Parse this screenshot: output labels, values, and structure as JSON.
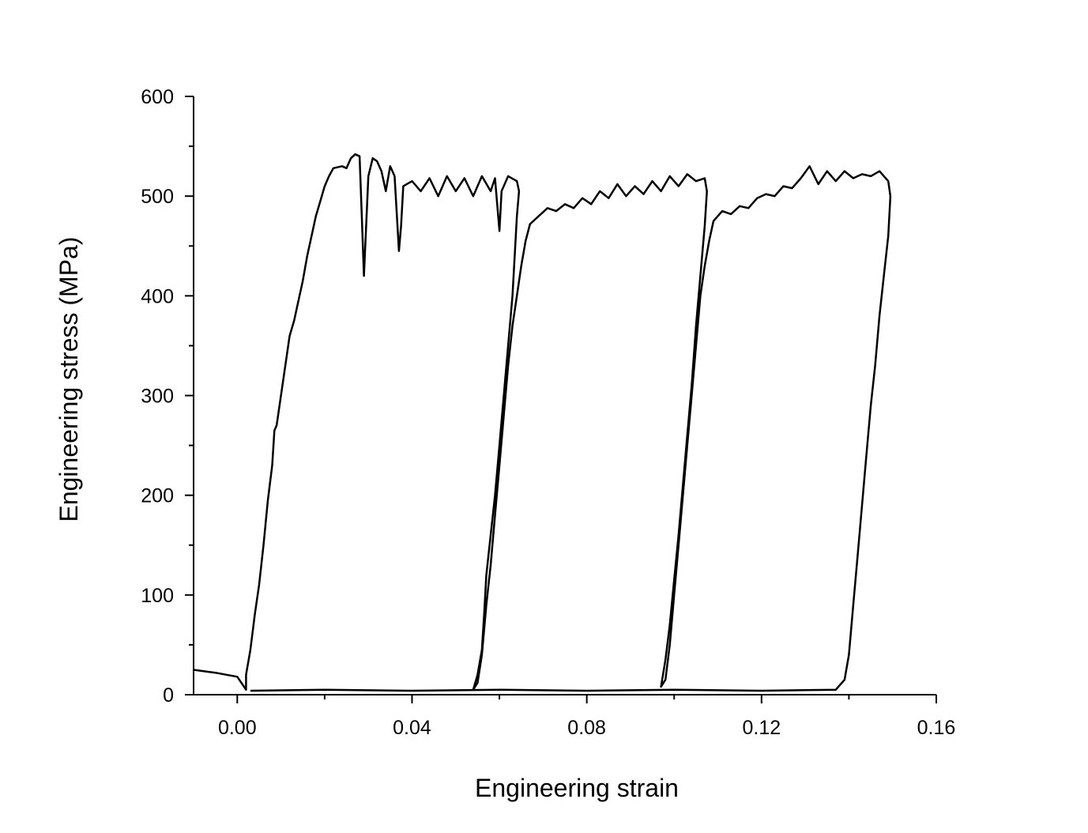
{
  "chart_data": {
    "type": "line",
    "title": "",
    "xlabel": "Engineering strain",
    "ylabel": "Engineering stress (MPa)",
    "xlim": [
      -0.01,
      0.16
    ],
    "ylim": [
      0,
      600
    ],
    "xticks": [
      0.0,
      0.04,
      0.08,
      0.12,
      0.16
    ],
    "xtick_labels": [
      "0.00",
      "0.04",
      "0.08",
      "0.12",
      "0.16"
    ],
    "yticks": [
      0,
      100,
      200,
      300,
      400,
      500,
      600
    ],
    "ytick_labels": [
      "0",
      "100",
      "200",
      "300",
      "400",
      "500",
      "600"
    ],
    "grid": false,
    "line_color": "#000000",
    "series": [
      {
        "points": [
          [
            -0.01,
            25
          ],
          [
            -0.005,
            22
          ],
          [
            0.0,
            18
          ],
          [
            0.002,
            5
          ],
          [
            0.002,
            20
          ],
          [
            0.003,
            45
          ],
          [
            0.004,
            80
          ],
          [
            0.005,
            110
          ],
          [
            0.006,
            150
          ],
          [
            0.007,
            195
          ],
          [
            0.008,
            230
          ],
          [
            0.0085,
            265
          ],
          [
            0.009,
            270
          ],
          [
            0.01,
            300
          ],
          [
            0.011,
            330
          ],
          [
            0.012,
            360
          ],
          [
            0.013,
            375
          ],
          [
            0.014,
            395
          ],
          [
            0.015,
            415
          ],
          [
            0.016,
            440
          ],
          [
            0.017,
            460
          ],
          [
            0.018,
            480
          ],
          [
            0.019,
            495
          ],
          [
            0.02,
            510
          ],
          [
            0.021,
            520
          ],
          [
            0.022,
            528
          ],
          [
            0.024,
            530
          ],
          [
            0.025,
            528
          ],
          [
            0.026,
            538
          ],
          [
            0.027,
            542
          ],
          [
            0.028,
            540
          ],
          [
            0.0285,
            480
          ],
          [
            0.029,
            420
          ],
          [
            0.0295,
            470
          ],
          [
            0.03,
            520
          ],
          [
            0.031,
            538
          ],
          [
            0.032,
            535
          ],
          [
            0.033,
            525
          ],
          [
            0.034,
            505
          ],
          [
            0.035,
            530
          ],
          [
            0.036,
            520
          ],
          [
            0.037,
            445
          ],
          [
            0.0375,
            470
          ],
          [
            0.038,
            510
          ],
          [
            0.04,
            515
          ],
          [
            0.042,
            505
          ],
          [
            0.044,
            518
          ],
          [
            0.046,
            500
          ],
          [
            0.048,
            520
          ],
          [
            0.05,
            505
          ],
          [
            0.052,
            518
          ],
          [
            0.054,
            500
          ],
          [
            0.056,
            520
          ],
          [
            0.058,
            505
          ],
          [
            0.059,
            518
          ],
          [
            0.06,
            465
          ],
          [
            0.0605,
            505
          ],
          [
            0.062,
            520
          ],
          [
            0.064,
            515
          ],
          [
            0.0645,
            505
          ],
          [
            0.064,
            480
          ],
          [
            0.0635,
            440
          ],
          [
            0.063,
            400
          ],
          [
            0.062,
            350
          ],
          [
            0.061,
            300
          ],
          [
            0.06,
            250
          ],
          [
            0.059,
            200
          ],
          [
            0.058,
            160
          ],
          [
            0.057,
            120
          ],
          [
            0.0565,
            80
          ],
          [
            0.056,
            45
          ],
          [
            0.055,
            20
          ],
          [
            0.054,
            5
          ],
          [
            0.055,
            12
          ],
          [
            0.056,
            40
          ],
          [
            0.057,
            90
          ],
          [
            0.058,
            130
          ],
          [
            0.059,
            180
          ],
          [
            0.06,
            230
          ],
          [
            0.061,
            280
          ],
          [
            0.062,
            330
          ],
          [
            0.063,
            370
          ],
          [
            0.064,
            400
          ],
          [
            0.065,
            430
          ],
          [
            0.066,
            455
          ],
          [
            0.067,
            472
          ],
          [
            0.069,
            480
          ],
          [
            0.071,
            488
          ],
          [
            0.073,
            485
          ],
          [
            0.075,
            492
          ],
          [
            0.077,
            488
          ],
          [
            0.079,
            498
          ],
          [
            0.081,
            492
          ],
          [
            0.083,
            505
          ],
          [
            0.085,
            498
          ],
          [
            0.087,
            512
          ],
          [
            0.089,
            500
          ],
          [
            0.091,
            510
          ],
          [
            0.093,
            502
          ],
          [
            0.095,
            515
          ],
          [
            0.097,
            505
          ],
          [
            0.099,
            520
          ],
          [
            0.101,
            510
          ],
          [
            0.103,
            522
          ],
          [
            0.105,
            515
          ],
          [
            0.107,
            518
          ],
          [
            0.1075,
            505
          ],
          [
            0.107,
            470
          ],
          [
            0.106,
            420
          ],
          [
            0.105,
            370
          ],
          [
            0.104,
            310
          ],
          [
            0.103,
            260
          ],
          [
            0.102,
            210
          ],
          [
            0.101,
            160
          ],
          [
            0.1,
            115
          ],
          [
            0.099,
            70
          ],
          [
            0.098,
            35
          ],
          [
            0.097,
            8
          ],
          [
            0.098,
            15
          ],
          [
            0.099,
            50
          ],
          [
            0.1,
            100
          ],
          [
            0.101,
            150
          ],
          [
            0.102,
            200
          ],
          [
            0.103,
            250
          ],
          [
            0.104,
            300
          ],
          [
            0.105,
            350
          ],
          [
            0.106,
            400
          ],
          [
            0.107,
            430
          ],
          [
            0.108,
            455
          ],
          [
            0.109,
            475
          ],
          [
            0.111,
            485
          ],
          [
            0.113,
            482
          ],
          [
            0.115,
            490
          ],
          [
            0.117,
            488
          ],
          [
            0.119,
            498
          ],
          [
            0.121,
            502
          ],
          [
            0.123,
            500
          ],
          [
            0.125,
            510
          ],
          [
            0.127,
            508
          ],
          [
            0.129,
            518
          ],
          [
            0.131,
            530
          ],
          [
            0.133,
            512
          ],
          [
            0.135,
            525
          ],
          [
            0.137,
            515
          ],
          [
            0.139,
            525
          ],
          [
            0.141,
            518
          ],
          [
            0.143,
            522
          ],
          [
            0.145,
            520
          ],
          [
            0.147,
            525
          ],
          [
            0.149,
            515
          ],
          [
            0.1495,
            500
          ],
          [
            0.149,
            460
          ],
          [
            0.148,
            420
          ],
          [
            0.147,
            380
          ],
          [
            0.146,
            330
          ],
          [
            0.145,
            290
          ],
          [
            0.144,
            240
          ],
          [
            0.143,
            190
          ],
          [
            0.142,
            140
          ],
          [
            0.141,
            90
          ],
          [
            0.14,
            40
          ],
          [
            0.139,
            15
          ],
          [
            0.137,
            5
          ],
          [
            0.12,
            4
          ],
          [
            0.1,
            5
          ],
          [
            0.08,
            4
          ],
          [
            0.06,
            5
          ],
          [
            0.04,
            4
          ],
          [
            0.02,
            5
          ],
          [
            0.003,
            4
          ]
        ]
      }
    ]
  }
}
